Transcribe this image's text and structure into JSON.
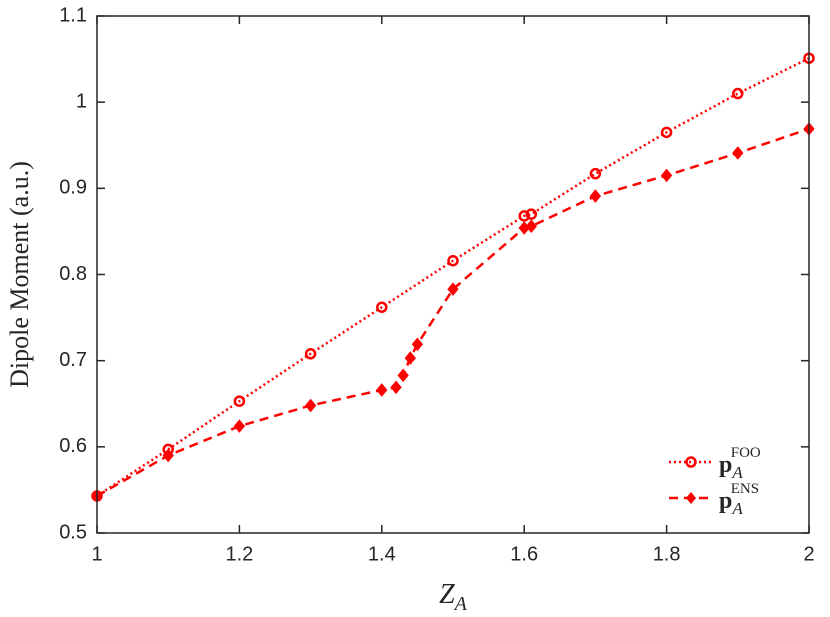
{
  "chart_data": {
    "type": "line",
    "ylabel": "Dipole Moment (a.u.)",
    "xlabel": "Z",
    "xlabel_subscript": "A",
    "xlim": [
      1,
      2
    ],
    "xticks": [
      1,
      1.2,
      1.4,
      1.6,
      1.8,
      2
    ],
    "ylim": [
      0.5,
      1.1
    ],
    "yticks": [
      0.5,
      0.6,
      0.7,
      0.8,
      0.9,
      1,
      1.1
    ],
    "legend": "lower right",
    "series": [
      {
        "name": "p",
        "subscript": "A",
        "superscript": "FOO",
        "color": "#ff0000",
        "marker": "circle",
        "linestyle": "dotted",
        "x": [
          1,
          1.1,
          1.2,
          1.3,
          1.4,
          1.5,
          1.6,
          1.61,
          1.7,
          1.8,
          1.9,
          2
        ],
        "values": [
          0.543,
          0.597,
          0.653,
          0.708,
          0.762,
          0.816,
          0.868,
          0.87,
          0.917,
          0.965,
          1.01,
          1.051
        ]
      },
      {
        "name": "p",
        "subscript": "A",
        "superscript": "ENS",
        "color": "#ff0000",
        "marker": "diamond",
        "linestyle": "dashed",
        "x": [
          1,
          1.1,
          1.2,
          1.3,
          1.4,
          1.42,
          1.43,
          1.44,
          1.45,
          1.5,
          1.6,
          1.61,
          1.7,
          1.8,
          1.9,
          2
        ],
        "values": [
          0.543,
          0.59,
          0.624,
          0.648,
          0.666,
          0.669,
          0.683,
          0.703,
          0.719,
          0.783,
          0.854,
          0.856,
          0.891,
          0.915,
          0.941,
          0.969
        ]
      }
    ]
  }
}
